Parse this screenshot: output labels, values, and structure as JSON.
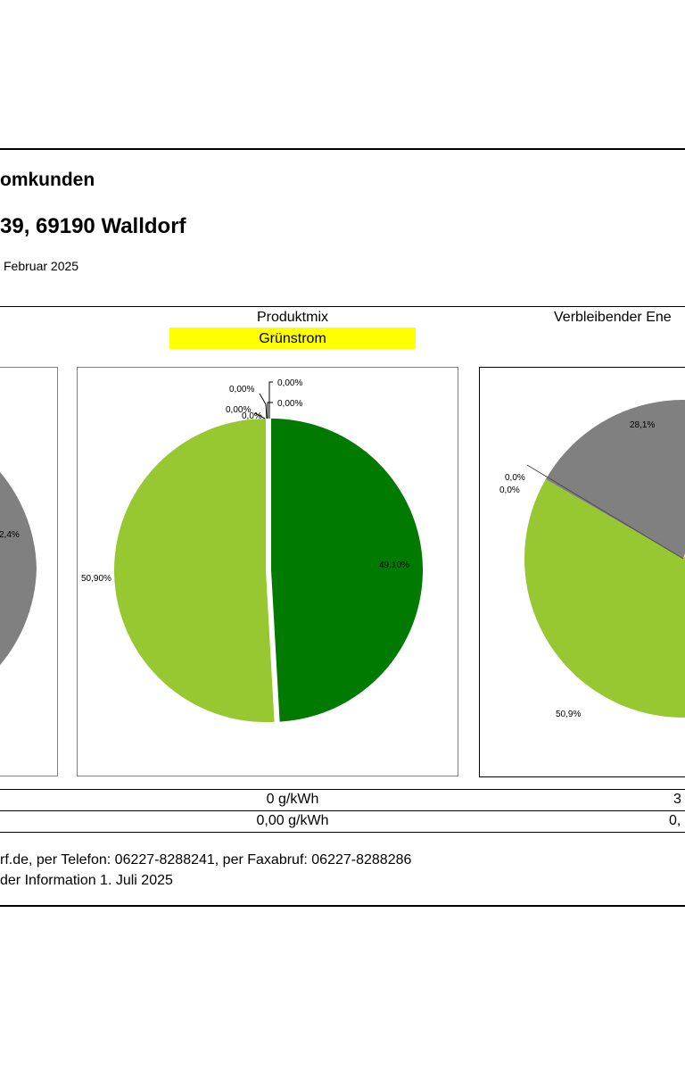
{
  "doc": {
    "title_line1": "omkunden",
    "title_line2": "39, 69190 Walldorf",
    "date_line": "Februar 2025"
  },
  "colors": {
    "dark_green": "#007a00",
    "light_green": "#97c832",
    "grey": "#808080",
    "yellow": "#ffff00",
    "dark_grey": "#4d4d4d"
  },
  "left_chart": {
    "partial_label": "2,4%"
  },
  "produktmix": {
    "header": "Produktmix",
    "subheader": "Grünstrom",
    "co2_value": "0 g/kWh",
    "waste_value": "0,00 g/kWh"
  },
  "verbleibend": {
    "header": "Verbleibender Ene",
    "co2_value": "3",
    "waste_value": "0,"
  },
  "footer": {
    "line1": "rf.de, per Telefon: 06227-8288241, per Faxabruf: 06227-8288286",
    "line2": "der Information 1. Juli 2025"
  },
  "chart_data": [
    {
      "type": "pie",
      "title": "Produktmix",
      "subtitle": "Grünstrom",
      "slices": [
        {
          "value": 49.1,
          "label": "49,10%",
          "color": "#007a00"
        },
        {
          "value": 50.9,
          "label": "50,90%",
          "color": "#97c832"
        },
        {
          "value": 0.0,
          "label": "0,00%",
          "color": "#808080"
        },
        {
          "value": 0.0,
          "label": "0,00%",
          "color": "#4d4d4d"
        },
        {
          "value": 0.0,
          "label": "0,00%",
          "color": "#ffff00"
        },
        {
          "value": 0.0,
          "label": "0,00%",
          "color": "#000000"
        },
        {
          "value": 0.0,
          "label": "0,0%",
          "color": "#000000"
        }
      ]
    },
    {
      "type": "pie",
      "title": "Verbleibender Ene",
      "slices": [
        {
          "value": 28.1,
          "label": "28,1%",
          "color": "#808080"
        },
        {
          "value": 50.9,
          "label": "50,9%",
          "color": "#97c832"
        },
        {
          "value": 0.0,
          "label": "0,0%",
          "color": "#000000"
        },
        {
          "value": 0.0,
          "label": "0,0%",
          "color": "#000000"
        }
      ]
    }
  ]
}
